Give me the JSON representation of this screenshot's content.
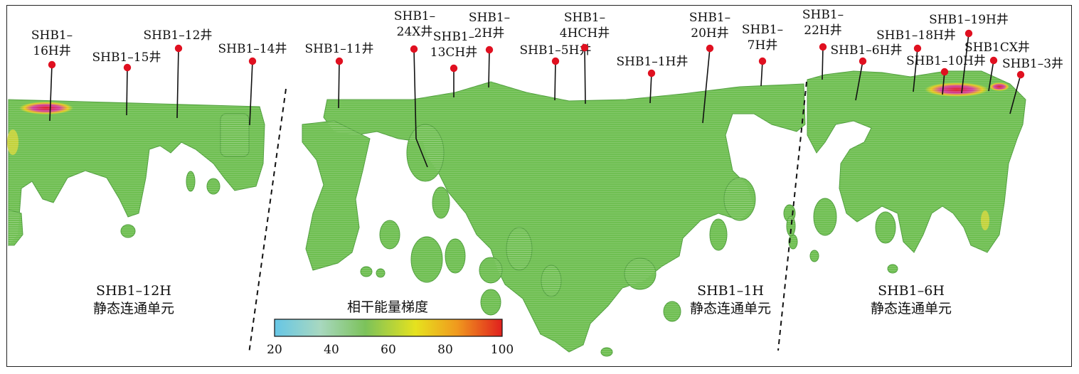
{
  "wells": [
    {
      "id": "16H",
      "label": [
        "SHB1–",
        "16H井"
      ]
    },
    {
      "id": "15",
      "label": [
        "SHB1–15井"
      ]
    },
    {
      "id": "12",
      "label": [
        "SHB1–12井"
      ]
    },
    {
      "id": "14",
      "label": [
        "SHB1–14井"
      ]
    },
    {
      "id": "11",
      "label": [
        "SHB1–11井"
      ]
    },
    {
      "id": "24X",
      "label": [
        "SHB1–",
        "24X井"
      ]
    },
    {
      "id": "13CH",
      "label": [
        "SHB1–",
        "13CH井"
      ]
    },
    {
      "id": "2H",
      "label": [
        "SHB1–",
        "2H井"
      ]
    },
    {
      "id": "5H",
      "label": [
        "SHB1–5H井"
      ]
    },
    {
      "id": "4HCH",
      "label": [
        "SHB1–",
        "4HCH井"
      ]
    },
    {
      "id": "1H",
      "label": [
        "SHB1–1H井"
      ]
    },
    {
      "id": "20H",
      "label": [
        "SHB1–",
        "20H井"
      ]
    },
    {
      "id": "7H",
      "label": [
        "SHB1–",
        "7H井"
      ]
    },
    {
      "id": "22H",
      "label": [
        "SHB1–",
        "22H井"
      ]
    },
    {
      "id": "6H",
      "label": [
        "SHB1–6H井"
      ]
    },
    {
      "id": "18H",
      "label": [
        "SHB1–18H井"
      ]
    },
    {
      "id": "19H",
      "label": [
        "SHB1–19H井"
      ]
    },
    {
      "id": "10H",
      "label": [
        "SHB1–10H井"
      ]
    },
    {
      "id": "CX",
      "label": [
        "SHB1CX井"
      ]
    },
    {
      "id": "3",
      "label": [
        "SHB1–3井"
      ]
    }
  ],
  "units": [
    {
      "id": "12H",
      "line1": "SHB1–12H",
      "line2": "静态连通单元"
    },
    {
      "id": "1H",
      "line1": "SHB1–1H",
      "line2": "静态连通单元"
    },
    {
      "id": "6H",
      "line1": "SHB1–6H",
      "line2": "静态连通单元"
    }
  ],
  "legend": {
    "title": "相干能量梯度",
    "ticks": [
      "20",
      "40",
      "60",
      "80",
      "100"
    ],
    "colors": [
      "#66c6e6",
      "#a8d8c0",
      "#7cc25a",
      "#e6e21e",
      "#f09a1e",
      "#e0201e"
    ]
  },
  "colors": {
    "body": "#6fbf52",
    "body_dark": "#4f9e3c",
    "well_marker": "#e01020",
    "well_line": "#111111"
  }
}
